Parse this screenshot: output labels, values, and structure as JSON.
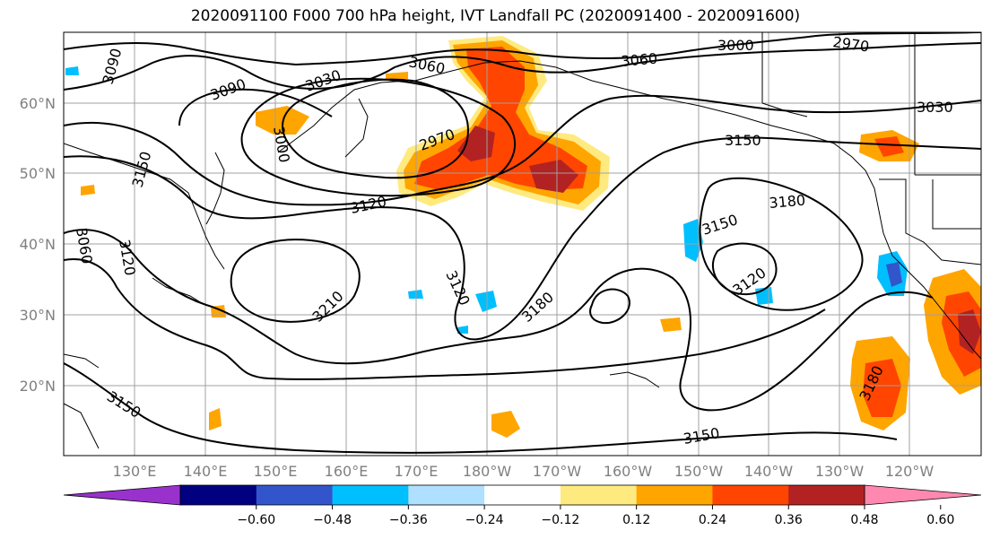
{
  "title": "2020091100 F000 700 hPa height, IVT Landfall PC (2020091400 - 2020091600)",
  "lat_labels": [
    "60°N",
    "50°N",
    "40°N",
    "30°N",
    "20°N"
  ],
  "lon_labels": [
    "130°E",
    "140°E",
    "150°E",
    "160°E",
    "170°E",
    "180°W",
    "170°W",
    "160°W",
    "150°W",
    "140°W",
    "130°W",
    "120°W"
  ],
  "contour_labels": [
    "3090",
    "3090",
    "3030",
    "3060",
    "3060",
    "3000",
    "2970",
    "3030",
    "3150",
    "3000",
    "2970",
    "3150",
    "3120",
    "3180",
    "3150",
    "3060",
    "3120",
    "3210",
    "3120",
    "3180",
    "3120",
    "3180",
    "3150",
    "3150"
  ],
  "colorbar": {
    "ticks": [
      "−0.60",
      "−0.48",
      "−0.36",
      "−0.24",
      "−0.12",
      "0.12",
      "0.24",
      "0.36",
      "0.48",
      "0.60"
    ],
    "colors": [
      "#9932cc",
      "#000080",
      "#3355cc",
      "#00bfff",
      "#b0e0ff",
      "#ffffff",
      "#ffea80",
      "#ffa500",
      "#ff4500",
      "#b22222",
      "#ff88b0"
    ]
  }
}
